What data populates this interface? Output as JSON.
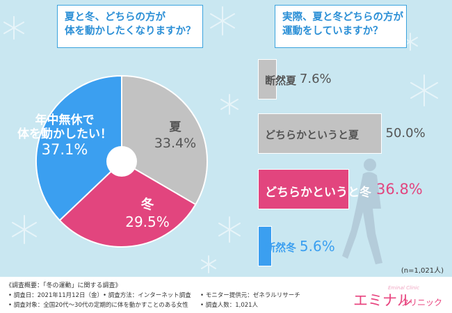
{
  "questions": {
    "left": [
      "夏と冬、どちらの方が",
      "体を動かしたくなりますか？"
    ],
    "right": [
      "実際、夏と冬どちらの方が",
      "運動をしていますか？"
    ]
  },
  "chart_data": [
    {
      "type": "pie",
      "slices": [
        {
          "label": "夏",
          "value": 33.4,
          "display": "33.4%",
          "color": "#c2c2c2"
        },
        {
          "label": "冬",
          "value": 29.5,
          "display": "29.5%",
          "color": "#e2457e"
        },
        {
          "label": "年中無休で\n体を動かしたい！",
          "value": 37.1,
          "display": "37.1%",
          "color": "#3b9ff0"
        }
      ]
    },
    {
      "type": "bar",
      "orientation": "horizontal",
      "categories": [
        "断然夏",
        "どちらかというと夏",
        "どちらかというと冬",
        "断然冬"
      ],
      "values": [
        7.6,
        50.0,
        36.8,
        5.6
      ],
      "display": [
        "7.6%",
        "50.0%",
        "36.8%",
        "5.6%"
      ],
      "colors": [
        "#c2c2c2",
        "#c2c2c2",
        "#e2457e",
        "#3b9ff0"
      ]
    }
  ],
  "sample_note": "(n=1,021人)",
  "footer": {
    "title": "《調査概要：「冬の運動」に関する調査》",
    "items": [
      "• 調査日：2021年11月12日（金）",
      "• 調査方法：インターネット調査",
      "• モニター提供元：ゼネラルリサーチ",
      "• 調査対象：全国20代～30代の定期的に体を動かすことのある女性",
      "• 調査人数：1,021人"
    ]
  },
  "logo": {
    "main": "エミナル",
    "sub": "クリニック",
    "script": "Eminal Clinic"
  }
}
